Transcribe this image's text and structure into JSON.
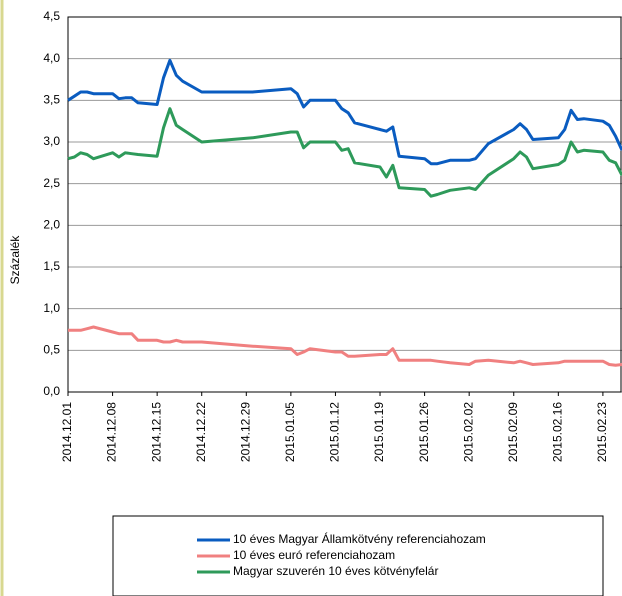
{
  "chart_data": {
    "type": "line",
    "y_label": "Százalék",
    "x": [
      "2014.12.01",
      "2014.12.02",
      "2014.12.03",
      "2014.12.04",
      "2014.12.05",
      "2014.12.08",
      "2014.12.09",
      "2014.12.10",
      "2014.12.11",
      "2014.12.12",
      "2014.12.15",
      "2014.12.16",
      "2014.12.17",
      "2014.12.18",
      "2014.12.19",
      "2014.12.22",
      "2014.12.30",
      "2015.01.05",
      "2015.01.06",
      "2015.01.07",
      "2015.01.08",
      "2015.01.12",
      "2015.01.13",
      "2015.01.14",
      "2015.01.15",
      "2015.01.19",
      "2015.01.20",
      "2015.01.21",
      "2015.01.22",
      "2015.01.26",
      "2015.01.27",
      "2015.01.28",
      "2015.01.30",
      "2015.02.02",
      "2015.02.03",
      "2015.02.05",
      "2015.02.09",
      "2015.02.10",
      "2015.02.11",
      "2015.02.12",
      "2015.02.16",
      "2015.02.17",
      "2015.02.18",
      "2015.02.19",
      "2015.02.20",
      "2015.02.23",
      "2015.02.24",
      "2015.02.25",
      "2015.02.26"
    ],
    "series": [
      {
        "name": "10 éves Magyar Államkötvény referenciahozam",
        "color": "#0a5cc0",
        "values": [
          3.5,
          3.55,
          3.6,
          3.6,
          3.58,
          3.58,
          3.52,
          3.53,
          3.53,
          3.47,
          3.45,
          3.77,
          3.98,
          3.8,
          3.73,
          3.6,
          3.6,
          3.64,
          3.58,
          3.42,
          3.5,
          3.5,
          3.4,
          3.35,
          3.23,
          3.15,
          3.13,
          3.18,
          2.83,
          2.8,
          2.74,
          2.74,
          2.78,
          2.78,
          2.8,
          2.98,
          3.15,
          3.22,
          3.15,
          3.03,
          3.05,
          3.15,
          3.38,
          3.27,
          3.28,
          3.25,
          3.2,
          3.07,
          2.9
        ]
      },
      {
        "name": "10 éves euró referenciahozam",
        "color": "#f08080",
        "values": [
          0.74,
          0.74,
          0.74,
          0.76,
          0.78,
          0.72,
          0.7,
          0.7,
          0.7,
          0.62,
          0.62,
          0.6,
          0.6,
          0.62,
          0.6,
          0.6,
          0.55,
          0.52,
          0.45,
          0.48,
          0.52,
          0.48,
          0.48,
          0.43,
          0.43,
          0.45,
          0.45,
          0.52,
          0.38,
          0.38,
          0.38,
          0.37,
          0.35,
          0.33,
          0.37,
          0.38,
          0.35,
          0.37,
          0.35,
          0.33,
          0.35,
          0.37,
          0.37,
          0.37,
          0.37,
          0.37,
          0.33,
          0.32,
          0.33
        ]
      },
      {
        "name": "Magyar szuverén 10 éves kötvényfelár",
        "color": "#2e9a5a",
        "values": [
          2.8,
          2.82,
          2.87,
          2.85,
          2.8,
          2.87,
          2.82,
          2.87,
          2.86,
          2.85,
          2.83,
          3.17,
          3.4,
          3.2,
          3.15,
          3.0,
          3.05,
          3.12,
          3.12,
          2.93,
          3.0,
          3.0,
          2.9,
          2.92,
          2.75,
          2.7,
          2.58,
          2.72,
          2.45,
          2.43,
          2.35,
          2.37,
          2.42,
          2.45,
          2.43,
          2.6,
          2.8,
          2.88,
          2.82,
          2.68,
          2.73,
          2.78,
          3.0,
          2.88,
          2.9,
          2.88,
          2.78,
          2.75,
          2.6
        ]
      }
    ],
    "xlim": [
      "2014.12.01",
      "2015.02.26"
    ],
    "xticks": [
      "2014.12.01",
      "2014.12.08",
      "2014.12.15",
      "2014.12.22",
      "2014.12.29",
      "2015.01.05",
      "2015.01.12",
      "2015.01.19",
      "2015.01.26",
      "2015.02.02",
      "2015.02.09",
      "2015.02.16",
      "2015.02.23"
    ],
    "ylim": [
      0,
      4.5
    ],
    "yticks": [
      {
        "value": 0,
        "label": "0,0"
      },
      {
        "value": 0.5,
        "label": "0,5"
      },
      {
        "value": 1,
        "label": "1,0"
      },
      {
        "value": 1.5,
        "label": "1,5"
      },
      {
        "value": 2,
        "label": "2,0"
      },
      {
        "value": 2.5,
        "label": "2,5"
      },
      {
        "value": 3,
        "label": "3,0"
      },
      {
        "value": 3.5,
        "label": "3,5"
      },
      {
        "value": 4,
        "label": "4,0"
      },
      {
        "value": 4.5,
        "label": "4,5"
      }
    ],
    "grid": true,
    "legend": "bottom"
  }
}
